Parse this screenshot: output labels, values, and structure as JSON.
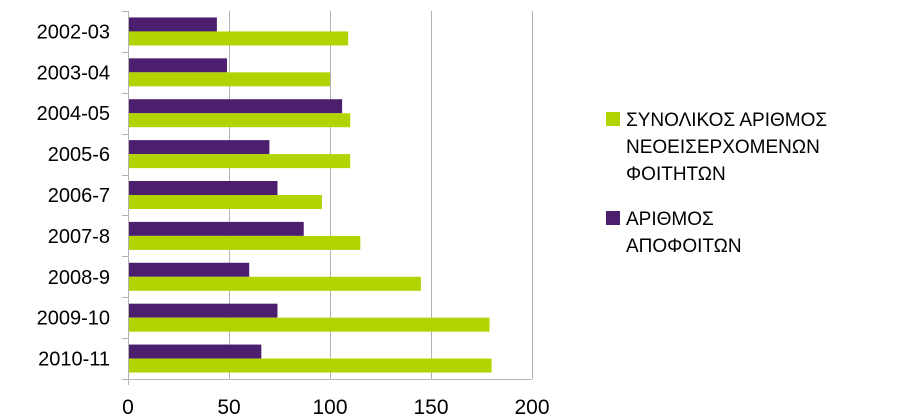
{
  "chart_data": {
    "type": "bar",
    "orientation": "horizontal",
    "title": "",
    "xlabel": "",
    "ylabel": "",
    "categories": [
      "2002-03",
      "2003-04",
      "2004-05",
      "2005-6",
      "2006-7",
      "2007-8",
      "2008-9",
      "2009-10",
      "2010-11"
    ],
    "series": [
      {
        "name": "ΣΥΝΟΛΙΚΟΣ ΑΡΙΘΜΟΣ ΝΕΟΕΙΣΕΡΧΟΜΕΝΩΝ ΦΟΙΤΗΤΩΝ",
        "legend_lines": [
          "ΣΥΝΟΛΙΚΟΣ ΑΡΙΘΜΟΣ",
          "ΝΕΟΕΙΣΕΡΧΟΜΕΝΩΝ",
          "ΦΟΙΤΗΤΩΝ"
        ],
        "color": "#b3d300",
        "values": [
          109,
          100,
          110,
          110,
          96,
          115,
          145,
          179,
          180
        ]
      },
      {
        "name": "ΑΡΙΘΜΟΣ ΑΠΟΦΟΙΤΩΝ",
        "legend_lines": [
          "ΑΡΙΘΜΟΣ",
          "ΑΠΟΦΟΙΤΩΝ"
        ],
        "color": "#4c1f6e",
        "values": [
          44,
          49,
          106,
          70,
          74,
          87,
          60,
          74,
          66
        ]
      }
    ],
    "xlim": [
      0,
      200
    ],
    "xticks": [
      0,
      50,
      100,
      150,
      200
    ],
    "grid": true,
    "legend_position": "right"
  }
}
